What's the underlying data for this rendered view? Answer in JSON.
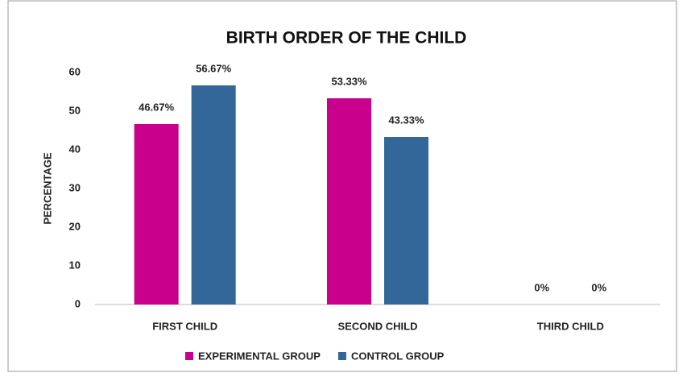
{
  "chart_data": {
    "type": "bar",
    "title": "BIRTH ORDER OF THE CHILD",
    "y_label": "PERCENTAGE",
    "categories": [
      "FIRST CHILD",
      "SECOND CHILD",
      "THIRD CHILD"
    ],
    "series": [
      {
        "name": "EXPERIMENTAL GROUP",
        "color": "#c8008c",
        "values": [
          46.67,
          53.33,
          0
        ],
        "value_labels": [
          "46.67%",
          "53.33%",
          "0%"
        ]
      },
      {
        "name": "CONTROL GROUP",
        "color": "#336699",
        "values": [
          56.67,
          43.33,
          0
        ],
        "value_labels": [
          "56.67%",
          "43.33%",
          "0%"
        ]
      }
    ],
    "ylim": [
      0,
      60
    ],
    "yticks": [
      0,
      10,
      20,
      30,
      40,
      50,
      60
    ],
    "grid": false
  }
}
